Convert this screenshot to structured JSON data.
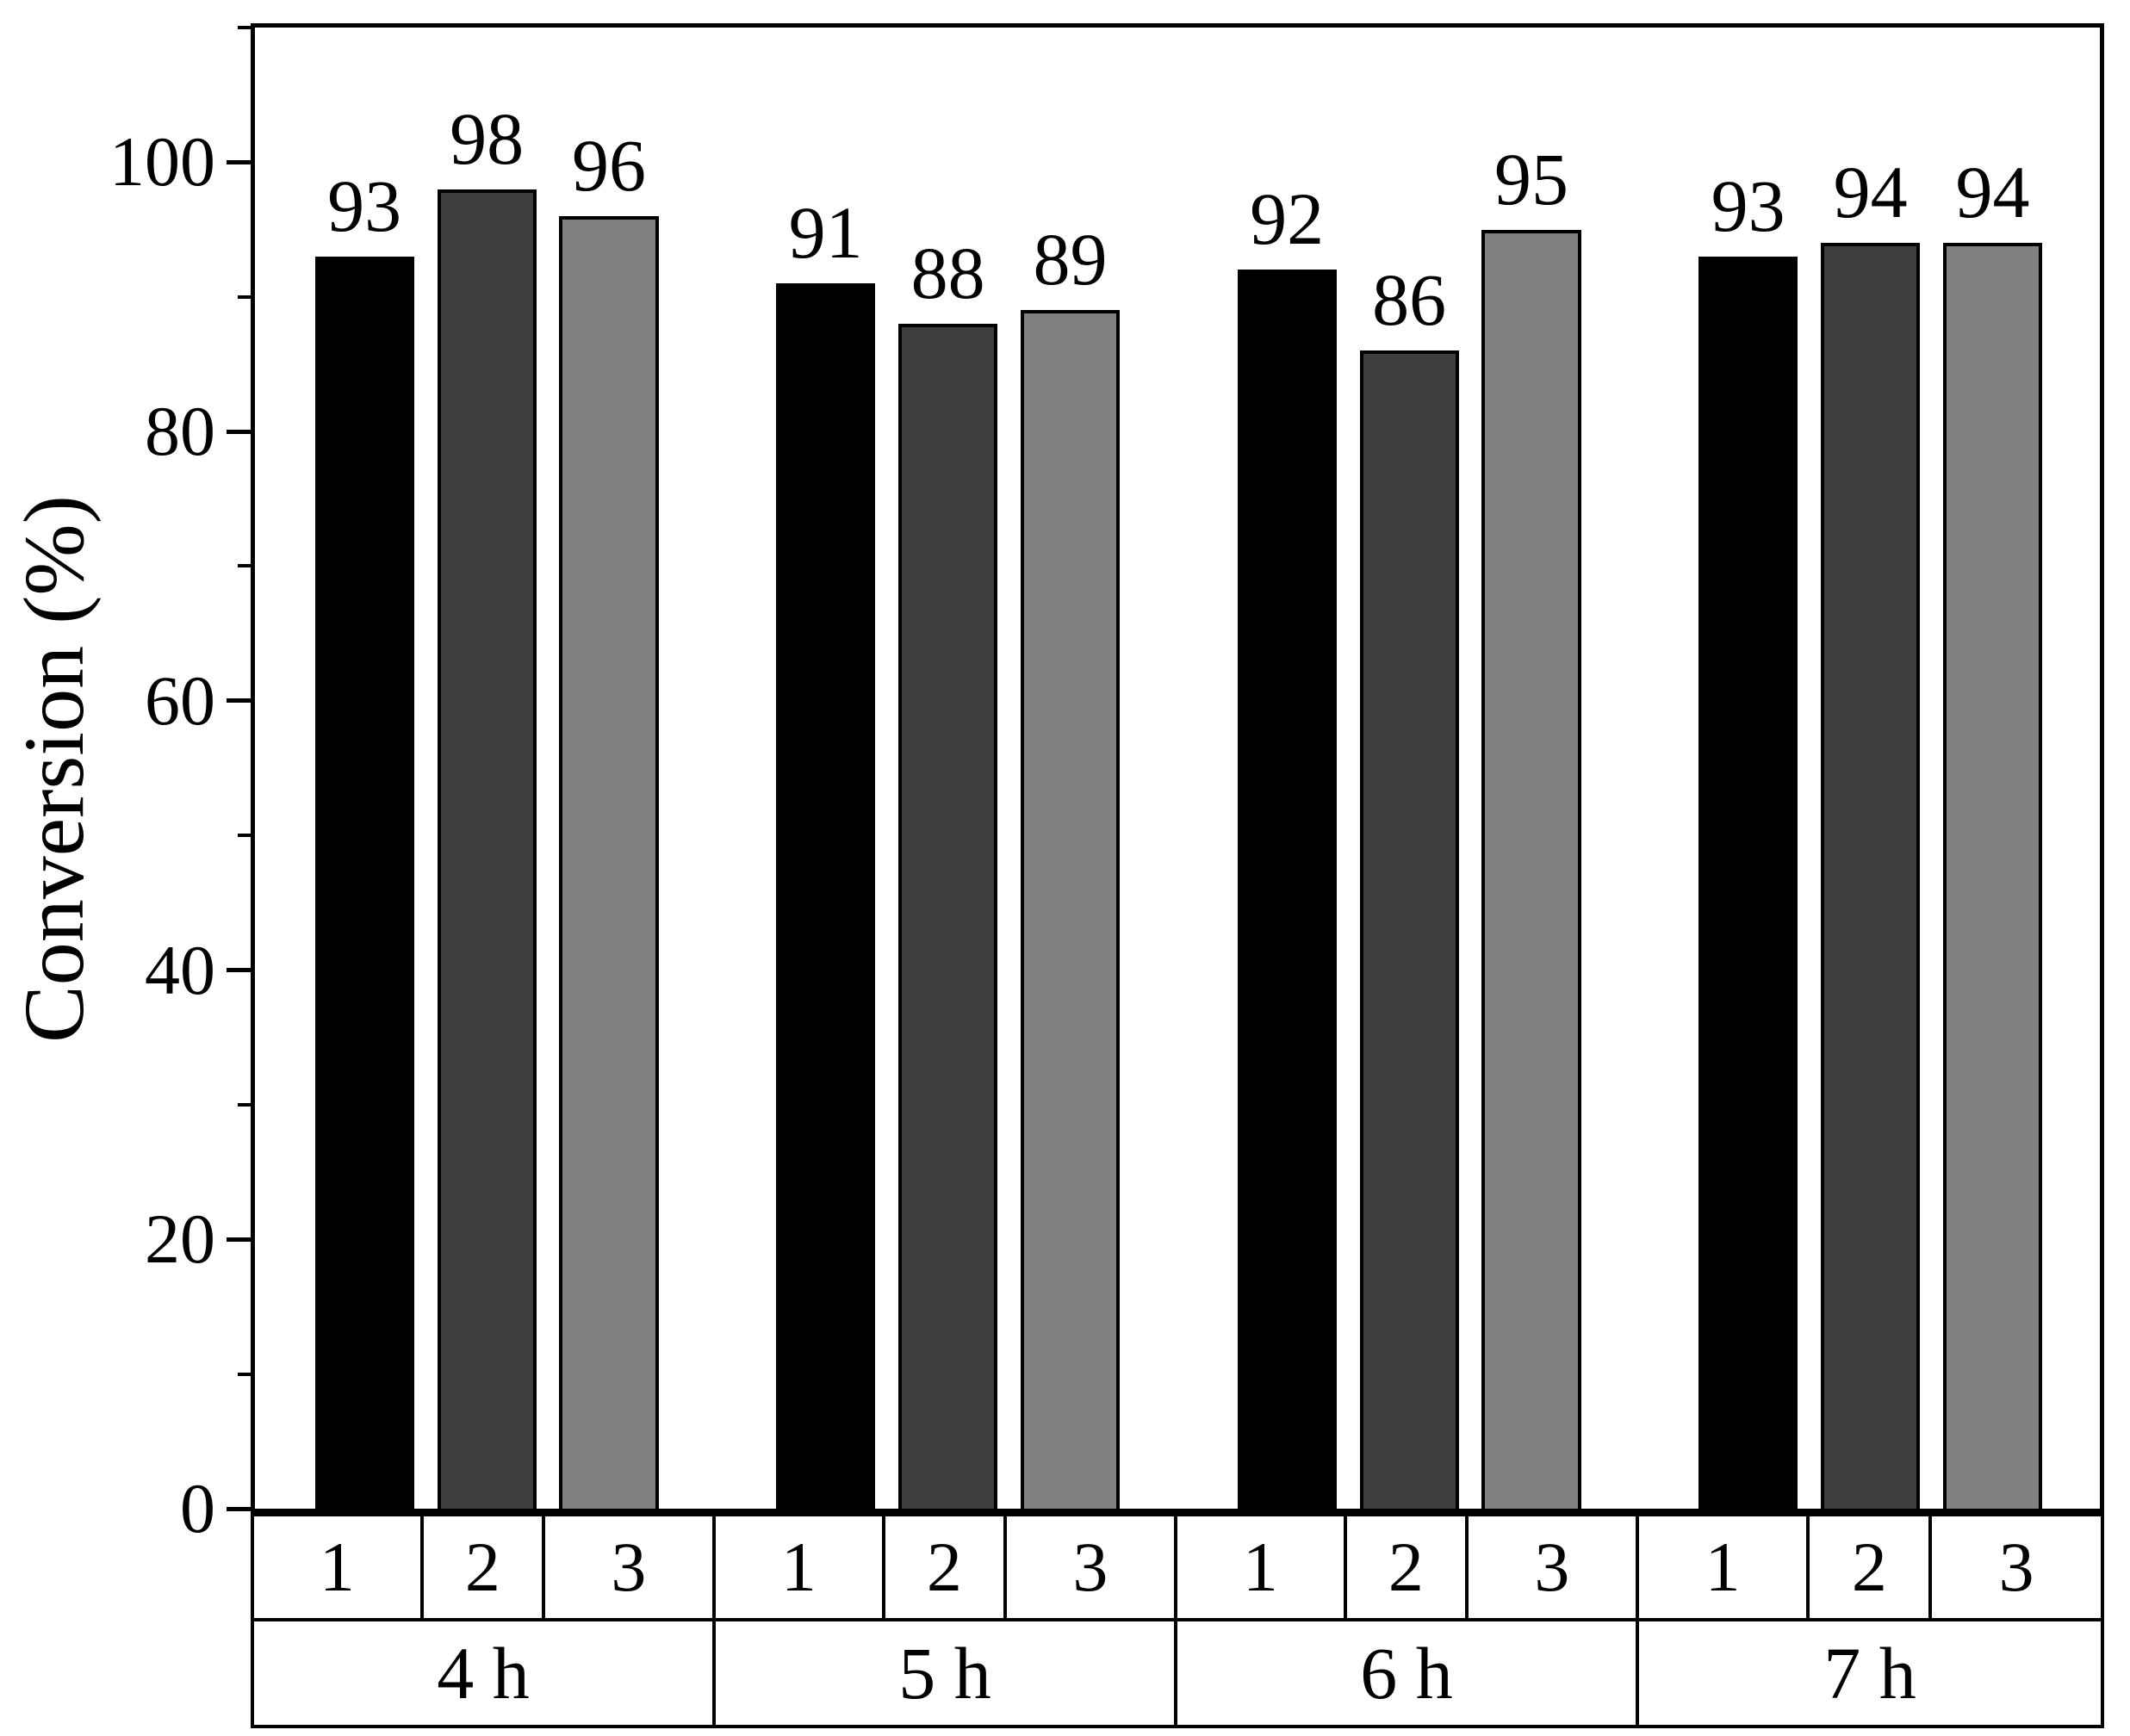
{
  "figure": {
    "background": "#ffffff",
    "frame_color": "#000000",
    "y_axis": {
      "title": "Conversion (%)",
      "major_ticks": [
        0,
        20,
        40,
        60,
        80,
        100
      ],
      "minor_ticks": [
        10,
        30,
        50,
        70,
        90,
        110
      ],
      "axis_max": 110
    },
    "x_axis": {
      "subgroup_labels": [
        "1",
        "2",
        "3"
      ],
      "group_labels": [
        "4 h",
        "5 h",
        "6 h",
        "7 h"
      ]
    }
  },
  "chart_data": {
    "type": "bar",
    "title": "",
    "xlabel": "",
    "ylabel": "Conversion (%)",
    "ylim": [
      0,
      110
    ],
    "grid": false,
    "legend_position": "none",
    "bar_value_labels": true,
    "categories": [
      "4 h",
      "5 h",
      "6 h",
      "7 h"
    ],
    "series": [
      {
        "name": "1",
        "color": "#000000",
        "values": [
          93,
          91,
          92,
          93
        ]
      },
      {
        "name": "2",
        "color": "#3f3f3f",
        "values": [
          98,
          88,
          86,
          94
        ]
      },
      {
        "name": "3",
        "color": "#808080",
        "values": [
          96,
          89,
          95,
          94
        ]
      }
    ]
  }
}
